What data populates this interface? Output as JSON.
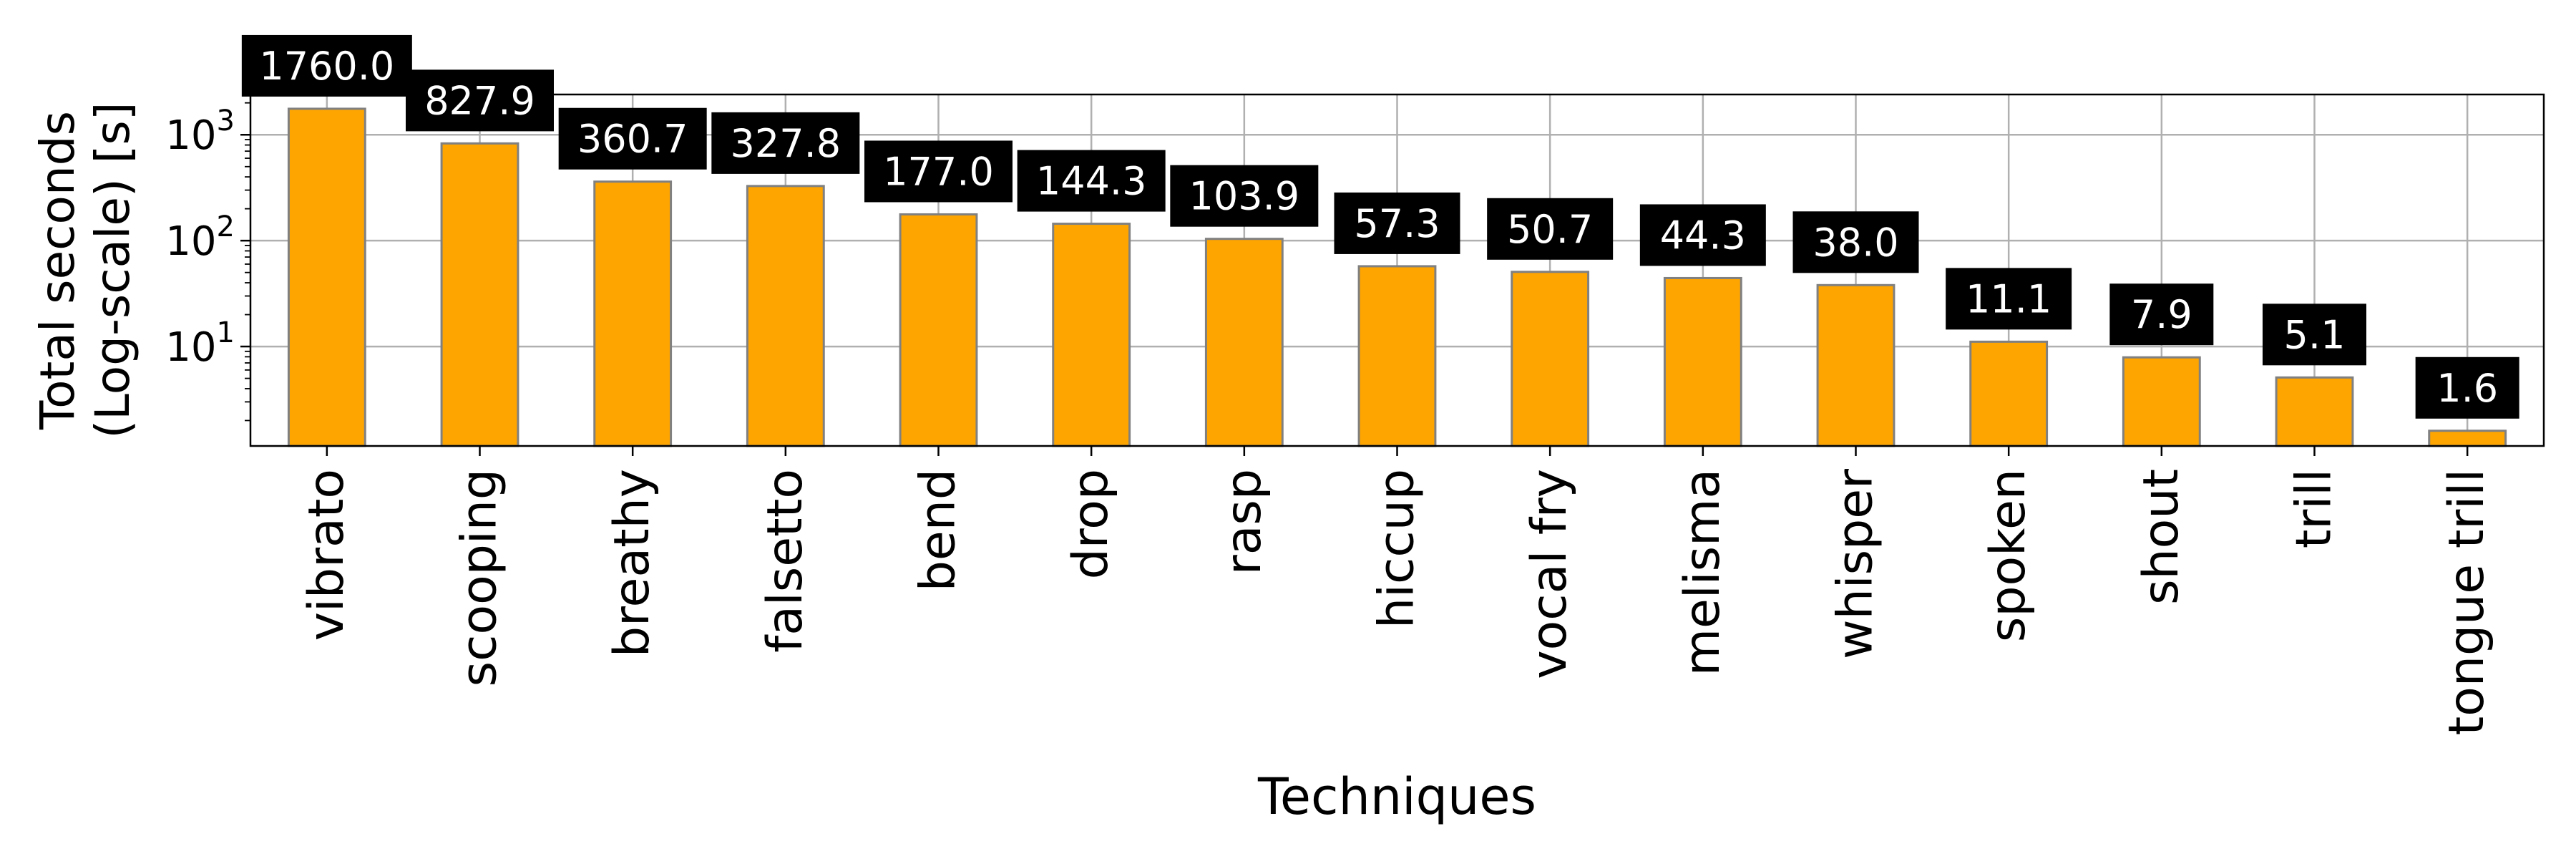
{
  "chart_data": {
    "type": "bar",
    "title": "",
    "xlabel": "Techniques",
    "ylabel_lines": [
      "Total seconds",
      "(Log-scale) [s]"
    ],
    "yscale": "log",
    "ylim": [
      1.15,
      2400
    ],
    "yticks": [
      {
        "value": 10,
        "base": "10",
        "exp": "1"
      },
      {
        "value": 100,
        "base": "10",
        "exp": "2"
      },
      {
        "value": 1000,
        "base": "10",
        "exp": "3"
      }
    ],
    "grid": true,
    "categories": [
      "vibrato",
      "scooping",
      "breathy",
      "falsetto",
      "bend",
      "drop",
      "rasp",
      "hiccup",
      "vocal fry",
      "melisma",
      "whisper",
      "spoken",
      "shout",
      "trill",
      "tongue trill"
    ],
    "values": [
      1760.0,
      827.9,
      360.7,
      327.8,
      177.0,
      144.3,
      103.9,
      57.3,
      50.7,
      44.3,
      38.0,
      11.1,
      7.9,
      5.1,
      1.6
    ],
    "data_labels": [
      "1760.0",
      "827.9",
      "360.7",
      "327.8",
      "177.0",
      "144.3",
      "103.9",
      "57.3",
      "50.7",
      "44.3",
      "38.0",
      "11.1",
      "7.9",
      "5.1",
      "1.6"
    ],
    "colors": {
      "bar_fill": "#FFA500",
      "bar_edge": "#808080",
      "label_bg": "#000000",
      "label_text": "#FFFFFF",
      "grid": "#B0B0B0",
      "axis": "#000000"
    }
  }
}
